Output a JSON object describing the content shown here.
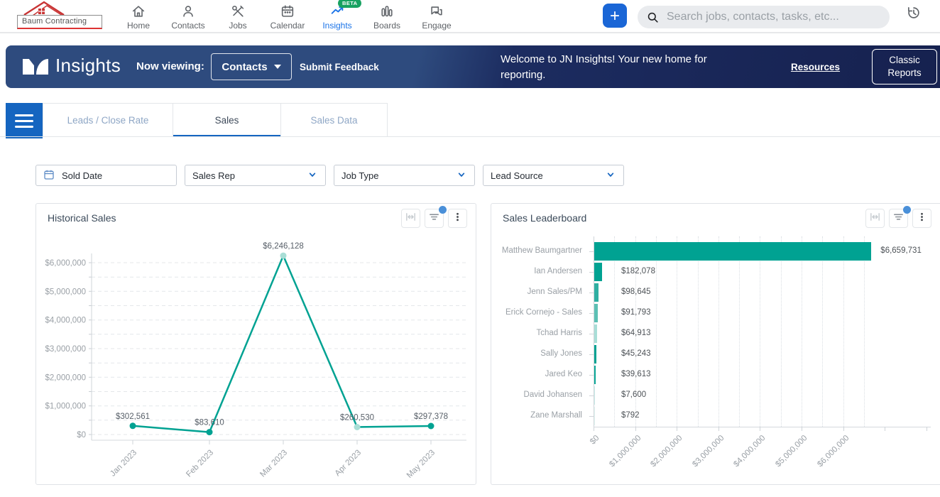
{
  "colors": {
    "teal": "#00A292",
    "teal_muted": "#a9ded6",
    "nav_active_blue": "#1a73e8",
    "beta_green": "#17a261",
    "banner_blue_left": "#2e4b7e",
    "banner_blue_right": "#16214f",
    "tab_blue": "#1565c0",
    "notification_dot_blue": "#4a90d9"
  },
  "topnav": {
    "logo_text": "Baum Contracting",
    "items": [
      {
        "label": "Home",
        "icon": "home-icon",
        "active": false
      },
      {
        "label": "Contacts",
        "icon": "contacts-icon",
        "active": false
      },
      {
        "label": "Jobs",
        "icon": "jobs-icon",
        "active": false
      },
      {
        "label": "Calendar",
        "icon": "calendar-icon",
        "active": false
      },
      {
        "label": "Insights",
        "icon": "insights-icon",
        "active": true,
        "badge": "BETA"
      },
      {
        "label": "Boards",
        "icon": "boards-icon",
        "active": false
      },
      {
        "label": "Engage",
        "icon": "engage-icon",
        "active": false
      }
    ],
    "add_button_label": "+",
    "search_placeholder": "Search jobs, contacts, tasks, etc..."
  },
  "banner": {
    "title": "Insights",
    "now_viewing_label": "Now viewing:",
    "selector_value": "Contacts",
    "submit_feedback_label": "Submit Feedback",
    "welcome_text": "Welcome to JN Insights! Your new home for reporting.",
    "resources_label": "Resources",
    "classic_reports_label": "Classic Reports"
  },
  "tabs": [
    {
      "label": "Leads / Close Rate",
      "active": false
    },
    {
      "label": "Sales",
      "active": true
    },
    {
      "label": "Sales Data",
      "active": false
    }
  ],
  "filters": [
    {
      "label": "Sold Date",
      "icon": "calendar-icon"
    },
    {
      "label": "Sales Rep",
      "icon": "chevron-down-icon"
    },
    {
      "label": "Job Type",
      "icon": "chevron-down-icon"
    },
    {
      "label": "Lead Source",
      "icon": "chevron-down-icon"
    }
  ],
  "card_toolbar_icons": [
    {
      "name": "fit-width-icon",
      "badge": false
    },
    {
      "name": "filter-icon",
      "badge": true
    },
    {
      "name": "kebab-icon",
      "badge": false
    }
  ],
  "chart_data": [
    {
      "type": "line",
      "title": "Historical Sales",
      "x": [
        "Jan 2023",
        "Feb 2023",
        "Mar 2023",
        "Apr 2023",
        "May 2023"
      ],
      "values": [
        302561,
        83610,
        6246128,
        260530,
        297378
      ],
      "point_labels": [
        "$302,561",
        "$83,610",
        "$6,246,128",
        "$260,530",
        "$297,378"
      ],
      "muted_points": [
        2,
        3
      ],
      "ytick_labels": [
        "$0",
        "$1,000,000",
        "$2,000,000",
        "$3,000,000",
        "$4,000,000",
        "$5,000,000",
        "$6,000,000"
      ],
      "ylim": [
        0,
        6000000
      ],
      "grid": "dashed horizontal, minor every 500000",
      "legend": "none",
      "line_color": "#00A292"
    },
    {
      "type": "bar",
      "title": "Sales Leaderboard",
      "orientation": "horizontal",
      "categories": [
        "Matthew Baumgartner",
        "Ian Andersen",
        "Jenn Sales/PM",
        "Erick Cornejo - Sales",
        "Tchad Harris",
        "Sally Jones",
        "Jared Keo",
        "David Johansen",
        "Zane Marshall"
      ],
      "values": [
        6659731,
        182078,
        98645,
        91793,
        64913,
        45243,
        39613,
        7600,
        792
      ],
      "value_labels": [
        "$6,659,731",
        "$182,078",
        "$98,645",
        "$91,793",
        "$64,913",
        "$45,243",
        "$39,613",
        "$7,600",
        "$792"
      ],
      "bar_colors": [
        "#00A292",
        "#00A292",
        "#2FAFA2",
        "#5CC0B4",
        "#A8DED7",
        "#00A292",
        "#0AA796",
        "#CBEDE9",
        "#E2F5F2"
      ],
      "xtick_labels": [
        "$0",
        "$1,000,000",
        "$2,000,000",
        "$3,000,000",
        "$4,000,000",
        "$5,000,000",
        "$6,000,000"
      ],
      "xlim": [
        0,
        6600000
      ],
      "grid": "dotted vertical, minor every 500000",
      "legend": "none"
    }
  ]
}
